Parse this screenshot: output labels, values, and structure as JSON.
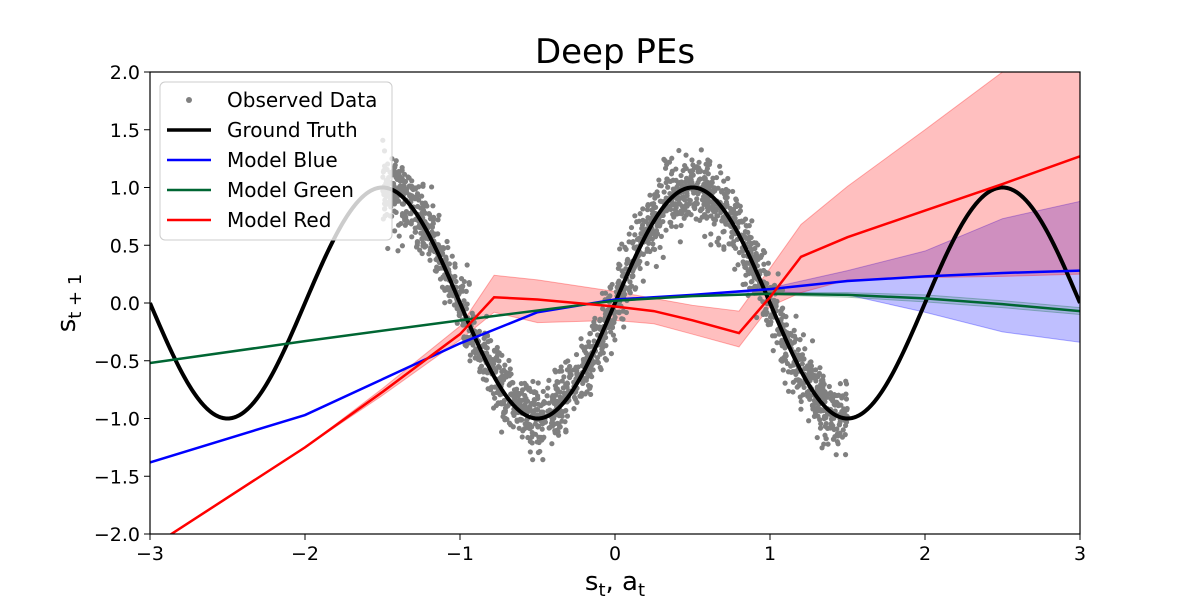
{
  "chart_data": {
    "type": "line",
    "title": "Deep PEs",
    "xlabel": "s_t, a_t",
    "ylabel": "s_t+1",
    "xlim": [
      -3,
      3
    ],
    "ylim": [
      -2,
      2
    ],
    "x_ticks": [
      -3,
      -2,
      -1,
      0,
      1,
      2,
      3
    ],
    "y_ticks": [
      -2.0,
      -1.5,
      -1.0,
      -0.5,
      0.0,
      0.5,
      1.0,
      1.5,
      2.0
    ],
    "x_tick_labels": [
      "−3",
      "−2",
      "−1",
      "0",
      "1",
      "2",
      "3"
    ],
    "y_tick_labels": [
      "−2.0",
      "−1.5",
      "−1.0",
      "−0.5",
      "0.0",
      "0.5",
      "1.0",
      "1.5",
      "2.0"
    ],
    "legend_position": "top-left",
    "grid": false,
    "observed_data": {
      "name": "Observed Data",
      "color": "#808080",
      "x_range": [
        -1.5,
        1.5
      ],
      "approx_noise_std": 0.15,
      "n_points": 2000,
      "relation": "sin(pi * x)"
    },
    "ground_truth": {
      "name": "Ground Truth",
      "color": "#000000",
      "relation": "sin(pi * x)",
      "x_range": [
        -3,
        3
      ]
    },
    "series": [
      {
        "name": "Model Blue",
        "color": "#0000ff",
        "band_color": "#0000ff",
        "x": [
          -3,
          -2,
          -1,
          -0.5,
          0,
          0.5,
          1,
          1.5,
          2,
          2.5,
          3
        ],
        "y": [
          -1.38,
          -0.97,
          -0.35,
          -0.08,
          0.03,
          0.07,
          0.12,
          0.19,
          0.23,
          0.26,
          0.28
        ],
        "lower": [
          -1.38,
          -0.97,
          -0.35,
          -0.08,
          0.03,
          0.07,
          0.1,
          0.07,
          -0.08,
          -0.25,
          -0.34
        ],
        "upper": [
          -1.38,
          -0.97,
          -0.35,
          -0.08,
          0.03,
          0.07,
          0.13,
          0.28,
          0.45,
          0.73,
          0.88
        ]
      },
      {
        "name": "Model Green",
        "color": "#006633",
        "band_color": "#006633",
        "x": [
          -3,
          -2,
          -1,
          0,
          0.5,
          1,
          1.5,
          2,
          2.5,
          3
        ],
        "y": [
          -0.52,
          -0.33,
          -0.15,
          0.02,
          0.06,
          0.08,
          0.07,
          0.04,
          -0.01,
          -0.07
        ],
        "lower": [
          -0.52,
          -0.33,
          -0.15,
          0.02,
          0.06,
          0.07,
          0.05,
          0.01,
          -0.04,
          -0.1
        ],
        "upper": [
          -0.52,
          -0.33,
          -0.15,
          0.02,
          0.06,
          0.09,
          0.09,
          0.07,
          0.02,
          -0.04
        ]
      },
      {
        "name": "Model Red",
        "color": "#ff0000",
        "band_color": "#ff0000",
        "x": [
          -3,
          -2,
          -1.5,
          -1,
          -0.78,
          -0.5,
          0,
          0.25,
          0.5,
          0.8,
          1,
          1.2,
          1.5,
          2,
          2.5,
          3
        ],
        "y": [
          -2.12,
          -1.25,
          -0.77,
          -0.27,
          0.05,
          0.03,
          -0.03,
          -0.07,
          -0.15,
          -0.26,
          0.05,
          0.4,
          0.57,
          0.8,
          1.03,
          1.27
        ],
        "lower": [
          -2.12,
          -1.25,
          -0.8,
          -0.32,
          -0.08,
          -0.17,
          -0.15,
          -0.18,
          -0.27,
          -0.38,
          -0.03,
          0.09,
          0.2,
          0.22,
          0.23,
          0.25
        ],
        "upper": [
          -2.12,
          -1.25,
          -0.74,
          -0.2,
          0.24,
          0.2,
          0.1,
          0.04,
          -0.02,
          -0.07,
          0.3,
          0.68,
          1.01,
          1.5,
          2.0,
          2.33
        ]
      }
    ]
  }
}
